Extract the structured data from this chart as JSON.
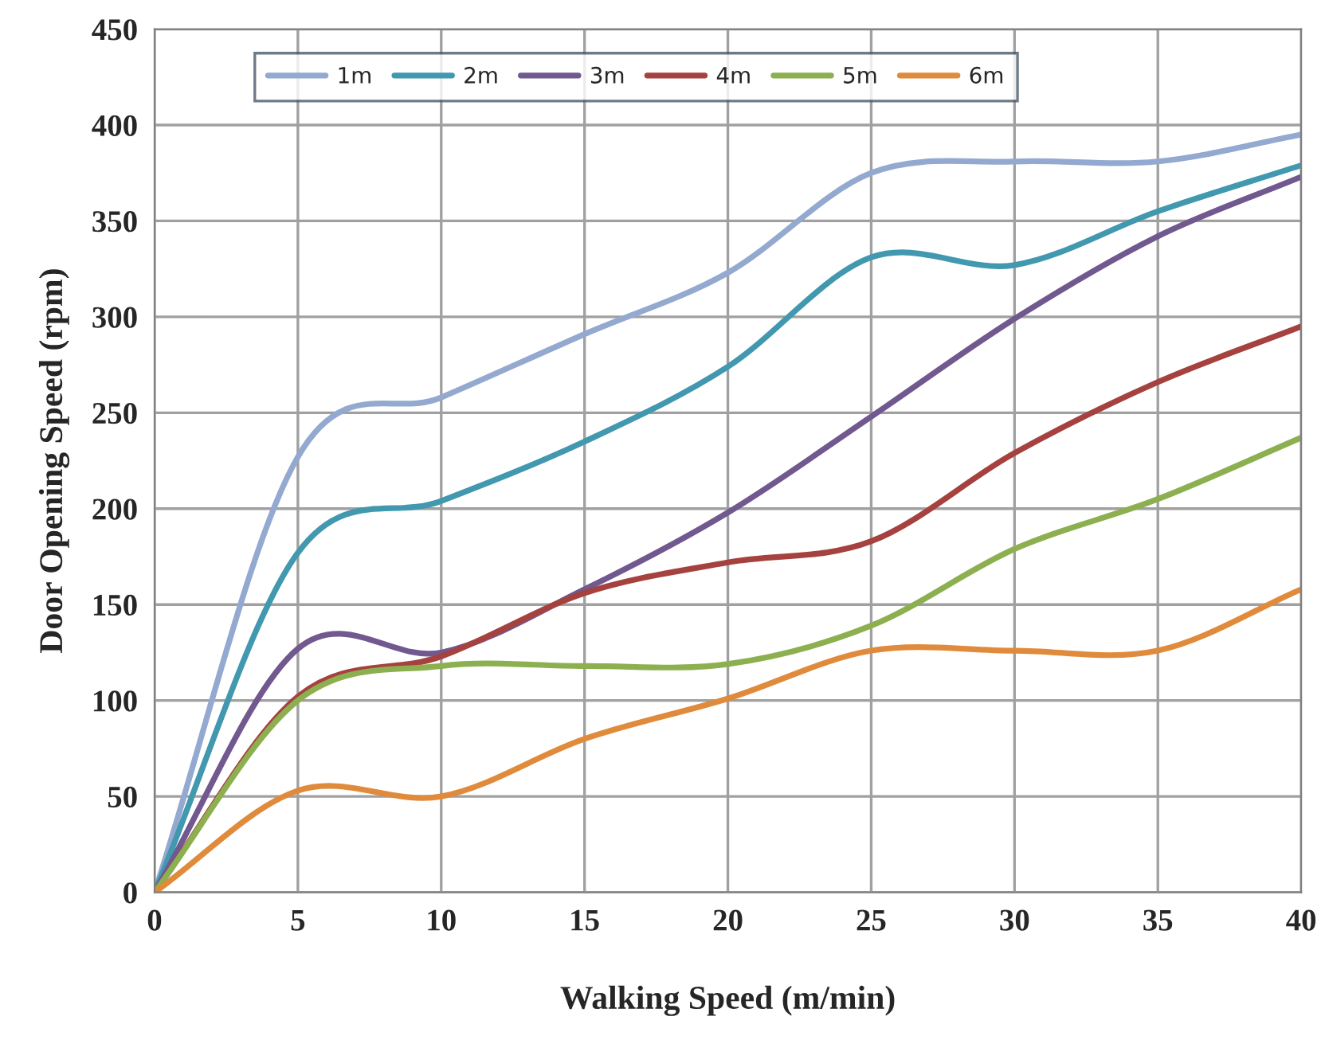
{
  "chart_data": {
    "type": "line",
    "xlabel": "Walking Speed (m/min)",
    "ylabel": "Door Opening Speed (rpm)",
    "x": [
      0,
      5,
      10,
      15,
      20,
      25,
      30,
      35,
      40
    ],
    "xlim": [
      0,
      40
    ],
    "xticks": [
      0,
      5,
      10,
      15,
      20,
      25,
      30,
      35,
      40
    ],
    "ylim": [
      0,
      450
    ],
    "yticks": [
      0,
      50,
      100,
      150,
      200,
      250,
      300,
      350,
      400,
      450
    ],
    "grid": true,
    "legend": "top",
    "line_style": "solid",
    "series": [
      {
        "name": "1m",
        "color": "#93a9cf",
        "values": [
          0,
          227,
          258,
          291,
          323,
          375,
          381,
          381,
          395
        ]
      },
      {
        "name": "2m",
        "color": "#4198af",
        "values": [
          0,
          177,
          204,
          235,
          274,
          331,
          327,
          355,
          379
        ]
      },
      {
        "name": "3m",
        "color": "#71588f",
        "values": [
          0,
          127,
          125,
          158,
          198,
          248,
          299,
          342,
          373
        ]
      },
      {
        "name": "4m",
        "color": "#a5423f",
        "values": [
          0,
          102,
          123,
          156,
          172,
          183,
          229,
          266,
          295
        ]
      },
      {
        "name": "5m",
        "color": "#8cb050",
        "values": [
          0,
          100,
          118,
          118,
          119,
          139,
          179,
          205,
          237
        ]
      },
      {
        "name": "6m",
        "color": "#e08b3c",
        "values": [
          0,
          53,
          50,
          80,
          101,
          126,
          126,
          126,
          158
        ]
      }
    ]
  }
}
